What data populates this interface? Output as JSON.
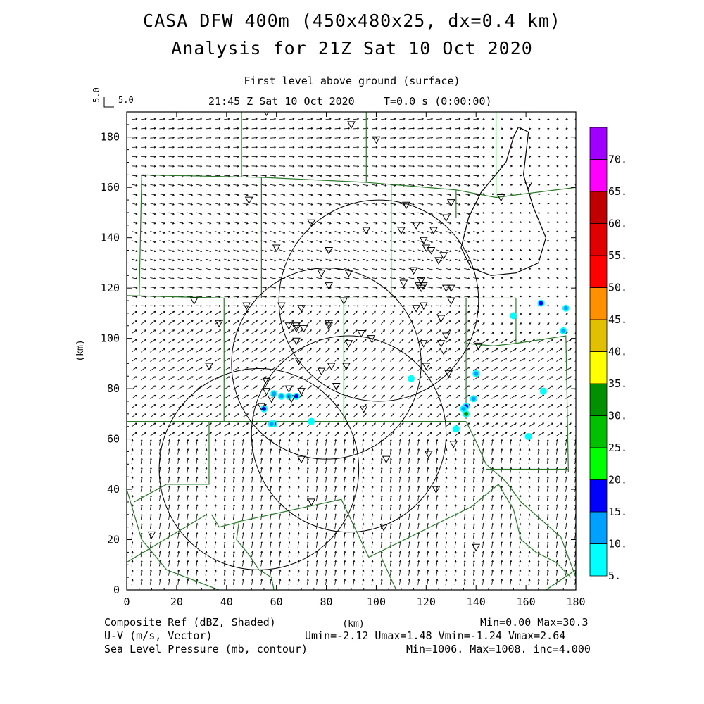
{
  "header": {
    "title_line1": "CASA DFW 400m (450x480x25, dx=0.4 km)",
    "title_line2": "Analysis for 21Z Sat 10 Oct 2020",
    "level": "First level above ground (surface)",
    "valid_time": "21:45 Z Sat 10 Oct 2020",
    "forecast_time": "T=0.0 s (0:00:00)"
  },
  "vector_key": {
    "vertical_label": "5.0",
    "horizontal_label": "5.0"
  },
  "footer": {
    "field1": "Composite Ref (dBZ, Shaded)",
    "field1_stats": "Min=0.00 Max=30.3",
    "field2": "U-V (m/s, Vector)",
    "field2_stats": "Umin=-2.12 Umax=1.48 Vmin=-1.24 Vmax=2.64",
    "field3": "Sea Level Pressure (mb, contour)",
    "field3_stats": "Min=1006. Max=1008. inc=4.000"
  },
  "chart_data": {
    "type": "heatmap",
    "xlabel": "(km)",
    "ylabel": "(km)",
    "xlim": [
      0,
      180
    ],
    "ylim": [
      0,
      190
    ],
    "x_ticks": [
      0,
      20,
      40,
      60,
      80,
      100,
      120,
      140,
      160,
      180
    ],
    "y_ticks": [
      0,
      20,
      40,
      60,
      80,
      100,
      120,
      140,
      160,
      180
    ],
    "colorbar": {
      "labels": [
        "5.",
        "10.",
        "15.",
        "20.",
        "25.",
        "30.",
        "35.",
        "40.",
        "45.",
        "50.",
        "55.",
        "60.",
        "65.",
        "70."
      ],
      "colors": [
        "#00ffff",
        "#00a0ff",
        "#0000ff",
        "#00ff00",
        "#00c000",
        "#009000",
        "#ffff00",
        "#e0c000",
        "#ff9000",
        "#ff0000",
        "#e00000",
        "#c00000",
        "#ff00ff",
        "#a000ff"
      ]
    },
    "radar_rings": [
      {
        "cx": 53,
        "cy": 48,
        "r": 40
      },
      {
        "cx": 80,
        "cy": 90,
        "r": 38
      },
      {
        "cx": 89,
        "cy": 62,
        "r": 39
      },
      {
        "cx": 101,
        "cy": 115,
        "r": 40
      }
    ],
    "pressure_contour_1008": [
      [
        157,
        184
      ],
      [
        155,
        180
      ],
      [
        152,
        170
      ],
      [
        142,
        158
      ],
      [
        137,
        148
      ],
      [
        134,
        136
      ],
      [
        138,
        128
      ],
      [
        146,
        125
      ],
      [
        156,
        126
      ],
      [
        165,
        130
      ],
      [
        168,
        140
      ],
      [
        163,
        152
      ],
      [
        159,
        165
      ],
      [
        161,
        182
      ],
      [
        157,
        184
      ]
    ],
    "reflectivity_echoes": [
      {
        "x": 59,
        "y": 66,
        "dbz": 15
      },
      {
        "x": 62,
        "y": 77,
        "dbz": 10
      },
      {
        "x": 59,
        "y": 78,
        "dbz": 10
      },
      {
        "x": 68,
        "y": 77,
        "dbz": 15
      },
      {
        "x": 65,
        "y": 77,
        "dbz": 10
      },
      {
        "x": 55,
        "y": 72,
        "dbz": 15
      },
      {
        "x": 58,
        "y": 66,
        "dbz": 10
      },
      {
        "x": 74,
        "y": 67,
        "dbz": 5
      },
      {
        "x": 114,
        "y": 84,
        "dbz": 5
      },
      {
        "x": 136,
        "y": 73,
        "dbz": 15
      },
      {
        "x": 136,
        "y": 70,
        "dbz": 30
      },
      {
        "x": 135,
        "y": 72,
        "dbz": 10
      },
      {
        "x": 139,
        "y": 76,
        "dbz": 10
      },
      {
        "x": 140,
        "y": 86,
        "dbz": 10
      },
      {
        "x": 132,
        "y": 64,
        "dbz": 5
      },
      {
        "x": 166,
        "y": 114,
        "dbz": 15
      },
      {
        "x": 176,
        "y": 112,
        "dbz": 10
      },
      {
        "x": 175,
        "y": 103,
        "dbz": 10
      },
      {
        "x": 167,
        "y": 79,
        "dbz": 5
      },
      {
        "x": 155,
        "y": 109,
        "dbz": 5
      },
      {
        "x": 161,
        "y": 61,
        "dbz": 5
      }
    ],
    "stations": [
      [
        56,
        190
      ],
      [
        90,
        192
      ],
      [
        90,
        185
      ],
      [
        100,
        179
      ],
      [
        49,
        155
      ],
      [
        74,
        146
      ],
      [
        130,
        154
      ],
      [
        128,
        148
      ],
      [
        110,
        143
      ],
      [
        116,
        145
      ],
      [
        119,
        139
      ],
      [
        123,
        143
      ],
      [
        60,
        136
      ],
      [
        96,
        143
      ],
      [
        112,
        153
      ],
      [
        120,
        136
      ],
      [
        122,
        135
      ],
      [
        125,
        131
      ],
      [
        127,
        133
      ],
      [
        115,
        127
      ],
      [
        81,
        135
      ],
      [
        78,
        126
      ],
      [
        89,
        126
      ],
      [
        81,
        121
      ],
      [
        111,
        122
      ],
      [
        117,
        121
      ],
      [
        118,
        123
      ],
      [
        119,
        121
      ],
      [
        118,
        120
      ],
      [
        128,
        120
      ],
      [
        130,
        120
      ],
      [
        116,
        112
      ],
      [
        119,
        113
      ],
      [
        130,
        115
      ],
      [
        126,
        108
      ],
      [
        27,
        115
      ],
      [
        48,
        113
      ],
      [
        62,
        113
      ],
      [
        37,
        106
      ],
      [
        70,
        112
      ],
      [
        68,
        104
      ],
      [
        68,
        105
      ],
      [
        71,
        104
      ],
      [
        81,
        106
      ],
      [
        81,
        105
      ],
      [
        87,
        115
      ],
      [
        68,
        99
      ],
      [
        65,
        105
      ],
      [
        98,
        100
      ],
      [
        94,
        102
      ],
      [
        89,
        98
      ],
      [
        119,
        98
      ],
      [
        126,
        98
      ],
      [
        128,
        101
      ],
      [
        141,
        97
      ],
      [
        127,
        95
      ],
      [
        33,
        89
      ],
      [
        69,
        91
      ],
      [
        82,
        89
      ],
      [
        88,
        89
      ],
      [
        56,
        83
      ],
      [
        78,
        87
      ],
      [
        84,
        81
      ],
      [
        120,
        89
      ],
      [
        129,
        86
      ],
      [
        56,
        79
      ],
      [
        54,
        73
      ],
      [
        58,
        76
      ],
      [
        66,
        76
      ],
      [
        65,
        80
      ],
      [
        70,
        79
      ],
      [
        95,
        72
      ],
      [
        121,
        54
      ],
      [
        131,
        58
      ],
      [
        70,
        52
      ],
      [
        104,
        52
      ],
      [
        124,
        40
      ],
      [
        74,
        35
      ],
      [
        103,
        25
      ],
      [
        10,
        22
      ],
      [
        140,
        17
      ],
      [
        150,
        156
      ],
      [
        161,
        161
      ]
    ],
    "boundaries": [
      [
        [
          46,
          192
        ],
        [
          46,
          164
        ]
      ],
      [
        [
          96,
          192
        ],
        [
          96,
          162
        ]
      ],
      [
        [
          148,
          192
        ],
        [
          148,
          156
        ]
      ],
      [
        [
          6,
          165
        ],
        [
          54,
          164
        ],
        [
          96,
          162
        ],
        [
          132,
          159
        ],
        [
          148,
          156
        ],
        [
          180,
          160
        ]
      ],
      [
        [
          6,
          165
        ],
        [
          5,
          117
        ]
      ],
      [
        [
          54,
          164
        ],
        [
          54,
          116
        ]
      ],
      [
        [
          106,
          161
        ],
        [
          106,
          116
        ]
      ],
      [
        [
          132,
          159
        ],
        [
          132,
          148
        ]
      ],
      [
        [
          0,
          117
        ],
        [
          40,
          116
        ],
        [
          106,
          116
        ],
        [
          156,
          116
        ]
      ],
      [
        [
          39,
          116
        ],
        [
          39,
          67
        ]
      ],
      [
        [
          87,
          116
        ],
        [
          87,
          67
        ]
      ],
      [
        [
          156,
          116
        ],
        [
          156,
          98
        ]
      ],
      [
        [
          136,
          116
        ],
        [
          136,
          68
        ]
      ],
      [
        [
          136,
          98
        ],
        [
          147,
          97
        ],
        [
          156,
          98
        ],
        [
          176,
          101
        ],
        [
          177,
          47
        ]
      ],
      [
        [
          0,
          67
        ],
        [
          60,
          67
        ],
        [
          136,
          67
        ]
      ],
      [
        [
          33,
          67
        ],
        [
          33,
          42
        ],
        [
          16,
          42
        ],
        [
          3,
          35
        ]
      ],
      [
        [
          34,
          30
        ],
        [
          37,
          25
        ],
        [
          45,
          27
        ],
        [
          44,
          20
        ],
        [
          49,
          14
        ],
        [
          53,
          8
        ],
        [
          58,
          5
        ],
        [
          59,
          0
        ]
      ],
      [
        [
          44,
          27
        ],
        [
          86,
          36
        ],
        [
          97,
          13
        ]
      ],
      [
        [
          0,
          11
        ],
        [
          32,
          30
        ]
      ],
      [
        [
          0,
          40
        ],
        [
          6,
          20
        ],
        [
          16,
          8
        ],
        [
          37,
          0
        ]
      ],
      [
        [
          97,
          13
        ],
        [
          138,
          33
        ],
        [
          149,
          42
        ],
        [
          155,
          32
        ],
        [
          158,
          20
        ],
        [
          164,
          15
        ],
        [
          172,
          11
        ],
        [
          178,
          5
        ]
      ],
      [
        [
          136,
          67
        ],
        [
          140,
          59
        ],
        [
          144,
          50
        ],
        [
          152,
          43
        ],
        [
          158,
          35
        ],
        [
          166,
          28
        ],
        [
          174,
          21
        ],
        [
          177,
          13
        ],
        [
          180,
          5
        ]
      ],
      [
        [
          144,
          48
        ],
        [
          177,
          48
        ]
      ],
      [
        [
          102,
          13
        ],
        [
          108,
          0
        ]
      ],
      [
        [
          168,
          0
        ],
        [
          180,
          8
        ]
      ]
    ]
  }
}
